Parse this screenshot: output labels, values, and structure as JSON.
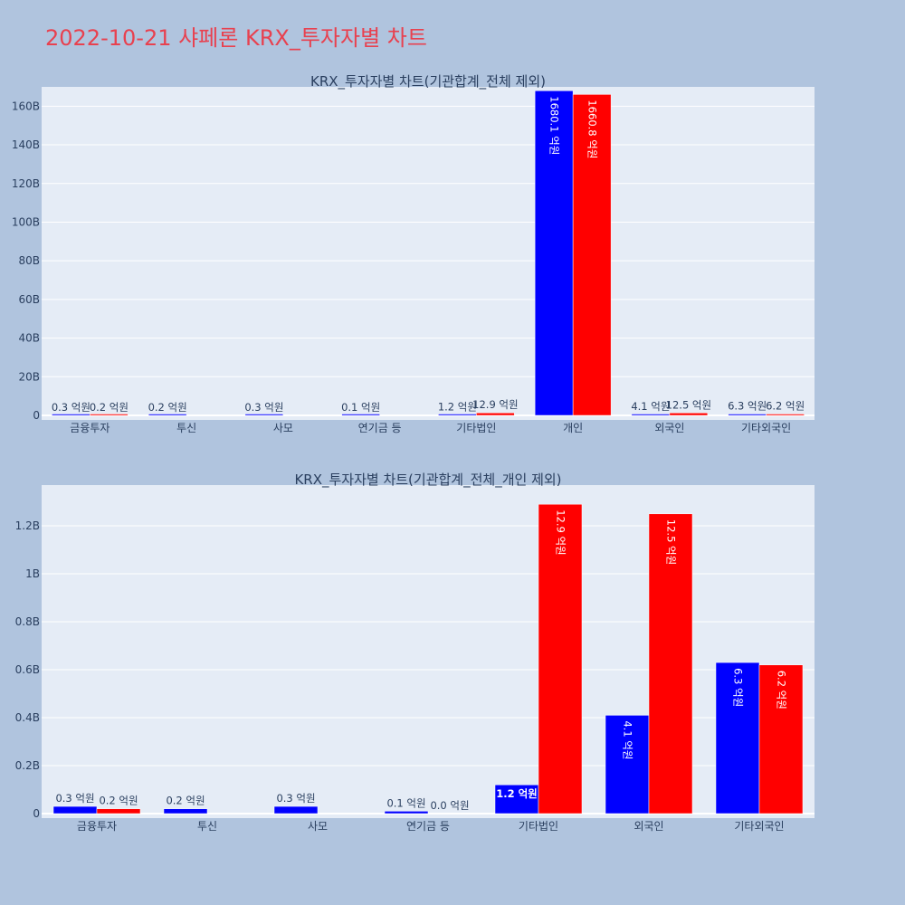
{
  "page": {
    "title": "2022-10-21 샤페론 KRX_투자자별 차트"
  },
  "colors": {
    "buy": "#0000ff",
    "sell": "#ff0000",
    "title": "#e8414f",
    "plot_bg": "#e5ecf6",
    "page_bg": "#b0c4de"
  },
  "chart_data": [
    {
      "type": "bar",
      "title": "KRX_투자자별 차트(기관합계_전체 제외)",
      "categories": [
        "금융투자",
        "투신",
        "사모",
        "연기금 등",
        "기타법인",
        "개인",
        "외국인",
        "기타외국인"
      ],
      "yticks": [
        "0",
        "20B",
        "40B",
        "60B",
        "80B",
        "100B",
        "120B",
        "140B",
        "160B"
      ],
      "ylim": [
        0,
        170000000000
      ],
      "grid": true,
      "series": [
        {
          "color": "#0000ff",
          "values": [
            30000000,
            20000000,
            30000000,
            10000000,
            120000000,
            168010000000,
            410000000,
            630000000
          ],
          "labels": [
            "0.3 억원",
            "0.2 억원",
            "0.3 억원",
            "0.1 억원",
            "1.2 억원",
            "1680.1 억원",
            "4.1 억원",
            "6.3 억원"
          ]
        },
        {
          "color": "#ff0000",
          "values": [
            20000000,
            0,
            0,
            0,
            1290000000,
            166080000000,
            1250000000,
            620000000
          ],
          "labels": [
            "0.2 억원",
            "",
            "",
            "",
            "12.9 억원",
            "1660.8 억원",
            "12.5 억원",
            "6.2 억원"
          ]
        }
      ]
    },
    {
      "type": "bar",
      "title": "KRX_투자자별 차트(기관합계_전체_개인 제외)",
      "categories": [
        "금융투자",
        "투신",
        "사모",
        "연기금 등",
        "기타법인",
        "외국인",
        "기타외국인"
      ],
      "yticks": [
        "0",
        "0.2B",
        "0.4B",
        "0.6B",
        "0.8B",
        "1B",
        "1.2B"
      ],
      "ylim": [
        0,
        1370000000
      ],
      "grid": true,
      "series": [
        {
          "color": "#0000ff",
          "values": [
            30000000,
            20000000,
            30000000,
            10000000,
            120000000,
            410000000,
            630000000
          ],
          "labels": [
            "0.3 억원",
            "0.2 억원",
            "0.3 억원",
            "0.1 억원",
            "1.2 억원",
            "4.1 억원",
            "6.3 억원"
          ]
        },
        {
          "color": "#ff0000",
          "values": [
            20000000,
            0,
            0,
            0,
            1290000000,
            1250000000,
            620000000
          ],
          "labels": [
            "0.2 억원",
            "",
            "",
            "0.0 억원",
            "12.9 억원",
            "12.5 억원",
            "6.2 억원"
          ]
        }
      ]
    }
  ]
}
